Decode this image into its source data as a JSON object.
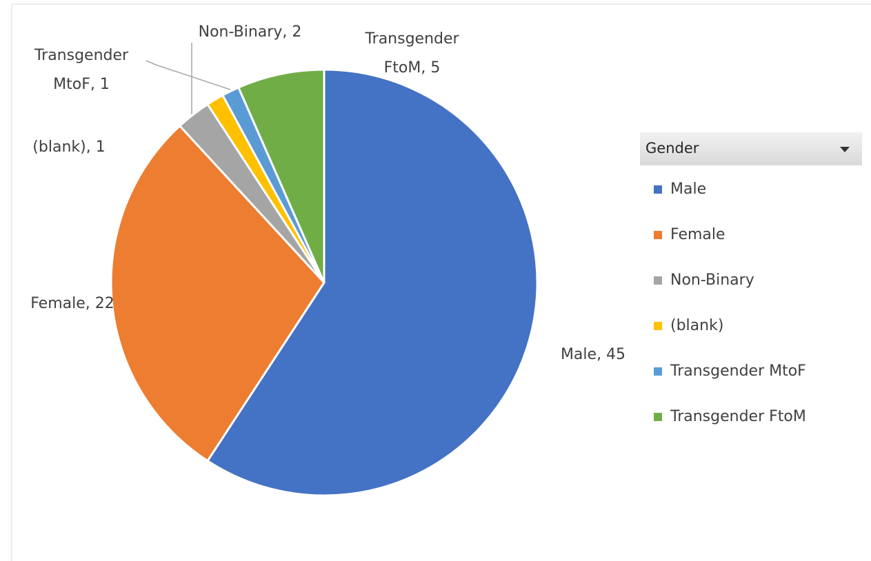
{
  "chart_data": {
    "type": "pie",
    "categories": [
      "Male",
      "Female",
      "Non-Binary",
      "(blank)",
      "Transgender MtoF",
      "Transgender FtoM"
    ],
    "values": [
      45,
      22,
      2,
      1,
      1,
      5
    ],
    "value_labels": [
      "Male, 45",
      "Female, 22",
      "Non-Binary, 2",
      "(blank), 1",
      "Transgender MtoF, 1",
      "Transgender FtoM, 5"
    ],
    "colors": [
      "#4472c4",
      "#ed7d31",
      "#a5a5a5",
      "#ffc000",
      "#5b9bd5",
      "#70ad47"
    ],
    "legend_title": "Gender",
    "legend": "right"
  }
}
